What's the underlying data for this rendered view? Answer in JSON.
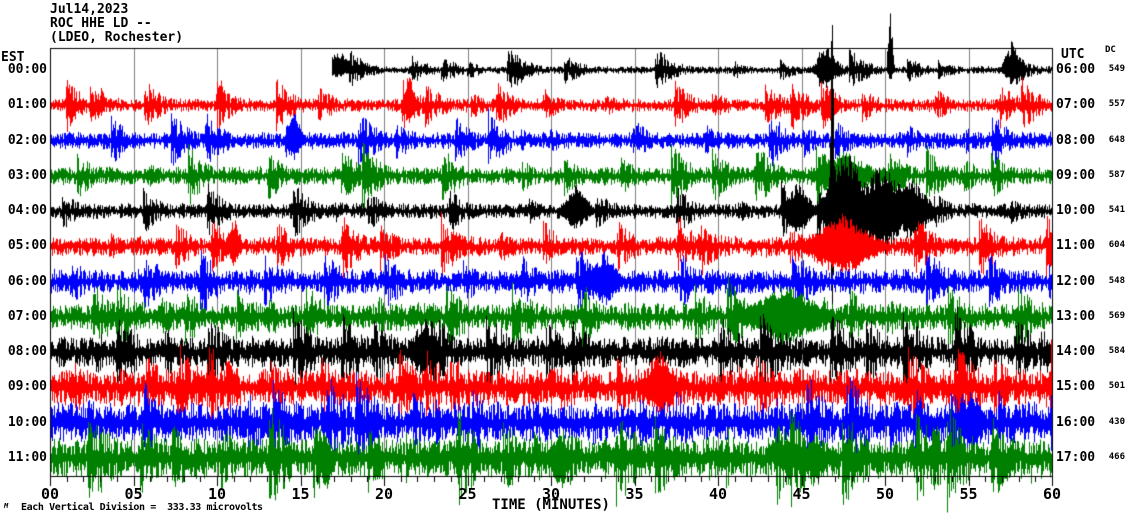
{
  "header": {
    "date": "Jul14,2023",
    "station": "ROC HHE LD --",
    "location": "(LDEO, Rochester)"
  },
  "left_axis": {
    "label": "EST"
  },
  "right_axis": {
    "label": "UTC",
    "dc_header": "DC"
  },
  "x_axis": {
    "label": "TIME (MINUTES)",
    "ticks": [
      "00",
      "05",
      "10",
      "15",
      "20",
      "25",
      "30",
      "35",
      "40",
      "45",
      "50",
      "55",
      "60"
    ]
  },
  "footer": {
    "scale_note": "Each Vertical Division =  333.33 microvolts",
    "watermark": "M"
  },
  "colors": {
    "background": "#ffffff",
    "frame": "#000000",
    "grid": "#808080",
    "trace_cycle": [
      "#000000",
      "#ff0000",
      "#0000ff",
      "#008000"
    ]
  },
  "chart_data": {
    "type": "line",
    "title": "ROC HHE LD -- (LDEO, Rochester) Jul14,2023",
    "xlabel": "TIME (MINUTES)",
    "xlim": [
      0,
      60
    ],
    "x_major_tick_minutes": 5,
    "x_minor_tick_minutes": 1,
    "grid": "vertical gray lines every 5 minutes",
    "layout": "helicorder: 12 stacked one-hour traces, amplitude in px around each row centerline",
    "rows": [
      {
        "est": "00:00",
        "utc": "06:00",
        "dc": 549,
        "color": "#000000",
        "start_min": 16.9,
        "base_amp": 2.5,
        "burst_amp": 16,
        "burst_gap": 58,
        "decay": 0.95,
        "seed": 101,
        "events": [
          {
            "min": 17.15,
            "up": 22,
            "down": 8,
            "w": 10
          },
          {
            "min": 50.3,
            "up": 58,
            "down": 12,
            "w": 2
          },
          {
            "min": 46.5,
            "up": 26,
            "down": 18,
            "w": 8
          },
          {
            "min": 57.6,
            "up": 30,
            "down": 16,
            "w": 6
          }
        ]
      },
      {
        "est": "01:00",
        "utc": "07:00",
        "dc": 557,
        "color": "#ff0000",
        "start_min": 0,
        "base_amp": 4.5,
        "burst_amp": 18,
        "burst_gap": 52,
        "decay": 0.952,
        "seed": 202,
        "events": [
          {
            "min": 21.5,
            "up": 34,
            "down": 20,
            "w": 4
          },
          {
            "min": 3.1,
            "up": 24,
            "down": 8,
            "w": 2
          },
          {
            "min": 10.2,
            "up": 28,
            "down": 9,
            "w": 2
          }
        ]
      },
      {
        "est": "02:00",
        "utc": "08:00",
        "dc": 648,
        "color": "#0000ff",
        "start_min": 0,
        "base_amp": 5.5,
        "burst_amp": 19,
        "burst_gap": 55,
        "decay": 0.952,
        "seed": 303,
        "events": [
          {
            "min": 14.6,
            "up": 28,
            "down": 24,
            "w": 6
          }
        ]
      },
      {
        "est": "03:00",
        "utc": "09:00",
        "dc": 587,
        "color": "#008000",
        "start_min": 0,
        "base_amp": 6,
        "burst_amp": 20,
        "burst_gap": 50,
        "decay": 0.953,
        "seed": 404,
        "events": [
          {
            "min": 47.5,
            "up": 26,
            "down": 26,
            "w": 20
          }
        ]
      },
      {
        "est": "04:00",
        "utc": "10:00",
        "dc": 541,
        "color": "#000000",
        "start_min": 0,
        "base_amp": 5,
        "burst_amp": 19,
        "burst_gap": 54,
        "decay": 0.953,
        "seed": 505,
        "events": [
          {
            "min": 46.8,
            "up": 211,
            "down": 138,
            "w": 1.5
          },
          {
            "min": 47.7,
            "up": 62,
            "down": 62,
            "w": 16
          },
          {
            "min": 49.8,
            "up": 46,
            "down": 46,
            "w": 20
          },
          {
            "min": 51.6,
            "up": 32,
            "down": 32,
            "w": 14
          },
          {
            "min": 44.8,
            "up": 32,
            "down": 26,
            "w": 9
          },
          {
            "min": 31.5,
            "up": 26,
            "down": 20,
            "w": 10
          }
        ]
      },
      {
        "est": "05:00",
        "utc": "11:00",
        "dc": 604,
        "color": "#ff0000",
        "start_min": 0,
        "base_amp": 6.5,
        "burst_amp": 21,
        "burst_gap": 50,
        "decay": 0.954,
        "seed": 606,
        "events": [
          {
            "min": 47.4,
            "up": 32,
            "down": 32,
            "w": 25
          },
          {
            "min": 11.0,
            "up": 30,
            "down": 22,
            "w": 5
          }
        ]
      },
      {
        "est": "06:00",
        "utc": "12:00",
        "dc": 548,
        "color": "#0000ff",
        "start_min": 0,
        "base_amp": 8,
        "burst_amp": 22,
        "burst_gap": 50,
        "decay": 0.956,
        "seed": 707,
        "events": [
          {
            "min": 33.2,
            "up": 30,
            "down": 26,
            "w": 10
          }
        ]
      },
      {
        "est": "07:00",
        "utc": "13:00",
        "dc": 569,
        "color": "#008000",
        "start_min": 0,
        "base_amp": 9,
        "burst_amp": 24,
        "burst_gap": 46,
        "decay": 0.958,
        "seed": 808,
        "events": [
          {
            "min": 44.0,
            "up": 32,
            "down": 30,
            "w": 28
          }
        ]
      },
      {
        "est": "08:00",
        "utc": "14:00",
        "dc": 584,
        "color": "#000000",
        "start_min": 0,
        "base_amp": 10,
        "burst_amp": 28,
        "burst_gap": 40,
        "decay": 0.962,
        "seed": 909,
        "events": [
          {
            "min": 22.4,
            "up": 36,
            "down": 30,
            "w": 10
          }
        ]
      },
      {
        "est": "09:00",
        "utc": "15:00",
        "dc": 501,
        "color": "#ff0000",
        "start_min": 0,
        "base_amp": 12,
        "burst_amp": 30,
        "burst_gap": 36,
        "decay": 0.964,
        "seed": 1010,
        "events": [
          {
            "min": 36.5,
            "up": 38,
            "down": 32,
            "w": 12
          }
        ]
      },
      {
        "est": "10:00",
        "utc": "16:00",
        "dc": 430,
        "color": "#0000ff",
        "start_min": 0,
        "base_amp": 13,
        "burst_amp": 30,
        "burst_gap": 36,
        "decay": 0.964,
        "seed": 1111,
        "events": [
          {
            "min": 55.2,
            "up": 34,
            "down": 40,
            "w": 8
          }
        ]
      },
      {
        "est": "11:00",
        "utc": "17:00",
        "dc": 466,
        "color": "#008000",
        "start_min": 0,
        "base_amp": 13,
        "burst_amp": 32,
        "burst_gap": 34,
        "decay": 0.965,
        "seed": 1212,
        "events": [
          {
            "min": 16.5,
            "up": 22,
            "down": 36,
            "w": 6
          },
          {
            "min": 30.5,
            "up": 24,
            "down": 32,
            "w": 8
          },
          {
            "min": 45.8,
            "up": 26,
            "down": 34,
            "w": 8
          }
        ]
      }
    ]
  }
}
